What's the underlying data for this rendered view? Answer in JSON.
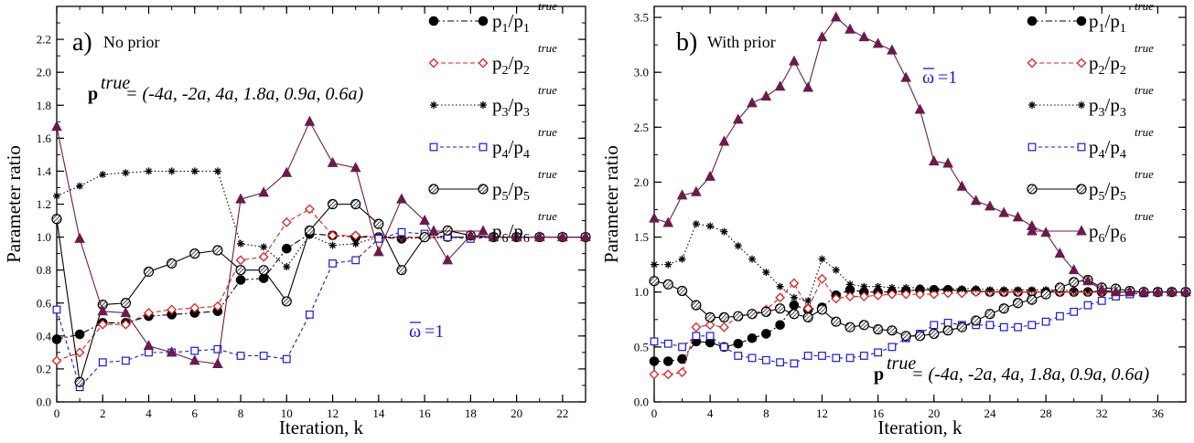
{
  "chart_data": [
    {
      "type": "line",
      "panel_label": "a)",
      "title": "No prior",
      "xlabel": "Iteration, k",
      "ylabel": "Parameter ratio",
      "xlim": [
        0,
        23
      ],
      "ylim": [
        0,
        2.4
      ],
      "xticks": [
        0,
        2,
        4,
        6,
        8,
        10,
        12,
        14,
        16,
        18,
        20,
        22
      ],
      "yticks": [
        0.0,
        0.2,
        0.4,
        0.6,
        0.8,
        1.0,
        1.2,
        1.4,
        1.6,
        1.8,
        2.0,
        2.2
      ],
      "ytick_labels": [
        "0.0",
        "0.2",
        "0.4",
        "0.6",
        "0.8",
        "1.0",
        "1.2",
        "1.4",
        "1.6",
        "1.8",
        "2.0",
        "2.2"
      ],
      "xtick_labels": [
        "0",
        "2",
        "4",
        "6",
        "8",
        "10",
        "12",
        "14",
        "16",
        "18",
        "20",
        "22"
      ],
      "ptrue_bold": "p",
      "ptrue_sup": "true",
      "ptrue_text": "= (-4a, -2a, 4a, 1.8a, 0.9a, 0.6a)",
      "omega_symbol": "ω",
      "omega_text": "=1",
      "legend_position": "top-right",
      "x": [
        0,
        1,
        2,
        3,
        4,
        5,
        6,
        7,
        8,
        9,
        10,
        11,
        12,
        13,
        14,
        15,
        16,
        17,
        18,
        19,
        20,
        21,
        22,
        23
      ],
      "series": [
        {
          "name": "p1/p1true",
          "base": "p",
          "sub": "1",
          "color": "#000000",
          "marker": "circle-filled",
          "dash": "7 3 2 3",
          "values": [
            0.38,
            0.41,
            0.48,
            0.48,
            0.52,
            0.53,
            0.54,
            0.55,
            0.74,
            0.75,
            0.93,
            1.02,
            1.01,
            1.0,
            1.0,
            0.99,
            1.0,
            1.0,
            1.0,
            1.0,
            1.0,
            1.0,
            1.0,
            1.0
          ]
        },
        {
          "name": "p2/p2true",
          "base": "p",
          "sub": "2",
          "color": "#e02020",
          "marker": "diamond",
          "dash": "5 3",
          "values": [
            0.25,
            0.3,
            0.47,
            0.47,
            0.54,
            0.56,
            0.57,
            0.58,
            0.86,
            0.88,
            1.09,
            1.17,
            1.01,
            1.01,
            1.0,
            1.0,
            1.0,
            1.0,
            1.0,
            1.0,
            1.0,
            1.0,
            1.0,
            1.0
          ]
        },
        {
          "name": "p3/p3true",
          "base": "p",
          "sub": "3",
          "color": "#000000",
          "marker": "star",
          "dash": "1.5 2.5",
          "values": [
            1.25,
            1.31,
            1.38,
            1.39,
            1.4,
            1.4,
            1.4,
            1.4,
            0.96,
            0.94,
            0.82,
            1.01,
            0.95,
            0.96,
            1.0,
            1.0,
            0.99,
            1.0,
            1.0,
            1.0,
            1.0,
            1.0,
            1.0,
            1.0
          ]
        },
        {
          "name": "p4/p4true",
          "base": "p",
          "sub": "4",
          "color": "#1a1adc",
          "marker": "square-open",
          "dash": "4 3",
          "values": [
            0.56,
            0.09,
            0.24,
            0.25,
            0.3,
            0.3,
            0.31,
            0.32,
            0.28,
            0.28,
            0.26,
            0.53,
            0.84,
            0.86,
            0.99,
            1.03,
            1.02,
            1.0,
            0.99,
            1.0,
            1.0,
            1.0,
            1.0,
            1.0
          ]
        },
        {
          "name": "p5/p5true",
          "base": "p",
          "sub": "5",
          "color": "#000000",
          "marker": "circle-hatched",
          "dash": "",
          "values": [
            1.11,
            0.12,
            0.59,
            0.6,
            0.79,
            0.84,
            0.9,
            0.92,
            0.8,
            0.8,
            0.61,
            1.04,
            1.2,
            1.2,
            1.08,
            0.8,
            1.0,
            1.04,
            1.01,
            1.0,
            1.0,
            1.0,
            1.0,
            1.0
          ]
        },
        {
          "name": "p6/p6true",
          "base": "p",
          "sub": "6",
          "color": "#6b1a4a",
          "marker": "triangle",
          "dash": "",
          "values": [
            1.67,
            0.99,
            0.55,
            0.54,
            0.34,
            0.3,
            0.25,
            0.23,
            1.23,
            1.27,
            1.39,
            1.7,
            1.45,
            1.42,
            0.91,
            1.23,
            1.1,
            0.86,
            1.01,
            1.0,
            1.0,
            1.0,
            1.0,
            1.0
          ]
        }
      ]
    },
    {
      "type": "line",
      "panel_label": "b)",
      "title": "With prior",
      "xlabel": "Iteration, k",
      "ylabel": "Parameter ratio",
      "xlim": [
        0,
        38
      ],
      "ylim": [
        0,
        3.6
      ],
      "xticks": [
        0,
        4,
        8,
        12,
        16,
        20,
        24,
        28,
        32,
        36
      ],
      "yticks": [
        0.0,
        0.5,
        1.0,
        1.5,
        2.0,
        2.5,
        3.0,
        3.5
      ],
      "ytick_labels": [
        "0.0",
        "0.5",
        "1.0",
        "1.5",
        "2.0",
        "2.5",
        "3.0",
        "3.5"
      ],
      "xtick_labels": [
        "0",
        "4",
        "8",
        "12",
        "16",
        "20",
        "24",
        "28",
        "32",
        "36"
      ],
      "ptrue_bold": "p",
      "ptrue_sup": "true",
      "ptrue_text": "= (-4a, -2a, 4a, 1.8a, 0.9a, 0.6a)",
      "omega_symbol": "ω",
      "omega_text": "=1",
      "legend_position": "top-right",
      "x": [
        0,
        1,
        2,
        3,
        4,
        5,
        6,
        7,
        8,
        9,
        10,
        11,
        12,
        13,
        14,
        15,
        16,
        17,
        18,
        19,
        20,
        21,
        22,
        23,
        24,
        25,
        26,
        27,
        28,
        29,
        30,
        31,
        32,
        33,
        34,
        35,
        36,
        37,
        38
      ],
      "series": [
        {
          "name": "p1/p1true",
          "base": "p",
          "sub": "1",
          "color": "#000000",
          "marker": "circle-filled",
          "dash": "7 3 2 3",
          "values": [
            0.37,
            0.37,
            0.39,
            0.55,
            0.54,
            0.5,
            0.53,
            0.58,
            0.62,
            0.7,
            0.88,
            0.84,
            0.86,
            0.97,
            1.02,
            1.0,
            1.0,
            1.0,
            1.01,
            1.02,
            1.02,
            1.02,
            1.01,
            1.01,
            1.0,
            1.0,
            1.0,
            1.0,
            1.0,
            1.0,
            1.0,
            1.0,
            1.0,
            1.0,
            1.0,
            1.0,
            1.0,
            1.0,
            1.0
          ]
        },
        {
          "name": "p2/p2true",
          "base": "p",
          "sub": "2",
          "color": "#e02020",
          "marker": "diamond",
          "dash": "5 3",
          "values": [
            0.25,
            0.25,
            0.27,
            0.68,
            0.7,
            0.68,
            0.78,
            0.8,
            0.84,
            0.95,
            1.08,
            0.85,
            1.12,
            0.94,
            0.96,
            0.96,
            0.97,
            0.98,
            0.98,
            0.98,
            0.98,
            0.99,
            0.99,
            1.0,
            1.0,
            1.0,
            1.0,
            1.0,
            1.0,
            1.0,
            1.0,
            1.0,
            1.0,
            1.0,
            1.0,
            1.0,
            1.0,
            1.0,
            1.0
          ]
        },
        {
          "name": "p3/p3true",
          "base": "p",
          "sub": "3",
          "color": "#000000",
          "marker": "star",
          "dash": "1.5 2.5",
          "values": [
            1.25,
            1.25,
            1.3,
            1.62,
            1.6,
            1.55,
            1.42,
            1.3,
            1.18,
            1.05,
            0.95,
            0.92,
            1.3,
            1.2,
            1.07,
            1.05,
            1.05,
            1.04,
            1.04,
            1.04,
            1.03,
            1.03,
            1.03,
            1.03,
            1.02,
            1.02,
            1.02,
            1.02,
            1.02,
            1.02,
            1.01,
            1.01,
            1.01,
            1.0,
            1.0,
            1.0,
            1.0,
            1.0,
            1.0
          ]
        },
        {
          "name": "p4/p4true",
          "base": "p",
          "sub": "4",
          "color": "#1a1adc",
          "marker": "square-open",
          "dash": "4 3",
          "values": [
            0.55,
            0.53,
            0.5,
            0.6,
            0.6,
            0.5,
            0.42,
            0.4,
            0.38,
            0.36,
            0.35,
            0.42,
            0.42,
            0.4,
            0.4,
            0.42,
            0.45,
            0.5,
            0.58,
            0.62,
            0.7,
            0.72,
            0.7,
            0.7,
            0.7,
            0.68,
            0.68,
            0.7,
            0.73,
            0.78,
            0.82,
            0.88,
            0.92,
            0.96,
            0.98,
            0.99,
            1.0,
            1.0,
            1.0
          ]
        },
        {
          "name": "p5/p5true",
          "base": "p",
          "sub": "5",
          "color": "#000000",
          "marker": "circle-hatched",
          "dash": "",
          "values": [
            1.1,
            1.07,
            1.01,
            0.88,
            0.77,
            0.77,
            0.78,
            0.8,
            0.82,
            0.85,
            0.8,
            0.77,
            0.84,
            0.73,
            0.68,
            0.7,
            0.66,
            0.65,
            0.6,
            0.6,
            0.62,
            0.65,
            0.68,
            0.74,
            0.8,
            0.85,
            0.9,
            0.93,
            0.98,
            1.04,
            1.09,
            1.11,
            1.04,
            1.03,
            1.01,
            1.0,
            1.0,
            1.0,
            1.0
          ]
        },
        {
          "name": "p6/p6true",
          "base": "p",
          "sub": "6",
          "color": "#6b1a4a",
          "marker": "triangle",
          "dash": "",
          "values": [
            1.67,
            1.63,
            1.88,
            1.91,
            2.05,
            2.37,
            2.57,
            2.72,
            2.78,
            2.87,
            3.1,
            2.86,
            3.32,
            3.5,
            3.39,
            3.32,
            3.26,
            3.2,
            2.95,
            2.66,
            2.19,
            2.17,
            1.96,
            1.83,
            1.78,
            1.72,
            1.68,
            1.6,
            1.54,
            1.35,
            1.2,
            1.1,
            1.02,
            1.0,
            1.0,
            1.0,
            1.0,
            1.0,
            1.0
          ]
        }
      ]
    }
  ]
}
